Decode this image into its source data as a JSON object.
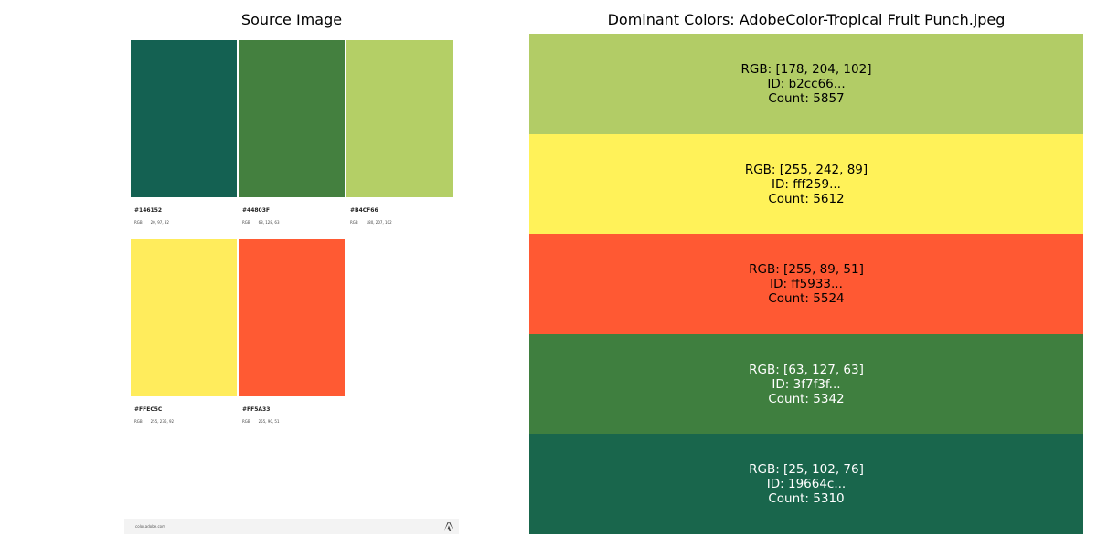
{
  "left_title": "Source Image",
  "right_title": "Dominant Colors: AdobeColor-Tropical Fruit Punch.jpeg",
  "source": {
    "rgb_label": "RGB",
    "swatches": [
      {
        "hex": "#146152",
        "rgb": "20, 97, 82",
        "color": "#146152"
      },
      {
        "hex": "#44803F",
        "rgb": "68, 128, 63",
        "color": "#44803f"
      },
      {
        "hex": "#B4CF66",
        "rgb": "180, 207, 102",
        "color": "#b4cf66"
      },
      {
        "hex": "#FFEC5C",
        "rgb": "255, 236, 92",
        "color": "#ffec5c"
      },
      {
        "hex": "#FF5A33",
        "rgb": "255, 90, 51",
        "color": "#ff5a33"
      }
    ],
    "footer_url": "color.adobe.com"
  },
  "colors": [
    {
      "rgb": "RGB: [178, 204, 102]",
      "id": "ID: b2cc66...",
      "count": "Count: 5857",
      "bg": "#b2cc66",
      "fg": "#000000"
    },
    {
      "rgb": "RGB: [255, 242, 89]",
      "id": "ID: fff259...",
      "count": "Count: 5612",
      "bg": "#fff259",
      "fg": "#000000"
    },
    {
      "rgb": "RGB: [255, 89, 51]",
      "id": "ID: ff5933...",
      "count": "Count: 5524",
      "bg": "#ff5933",
      "fg": "#000000"
    },
    {
      "rgb": "RGB: [63, 127, 63]",
      "id": "ID: 3f7f3f...",
      "count": "Count: 5342",
      "bg": "#3f7f3f",
      "fg": "#ffffff"
    },
    {
      "rgb": "RGB: [25, 102, 76]",
      "id": "ID: 19664c...",
      "count": "Count: 5310",
      "bg": "#19664c",
      "fg": "#ffffff"
    }
  ]
}
